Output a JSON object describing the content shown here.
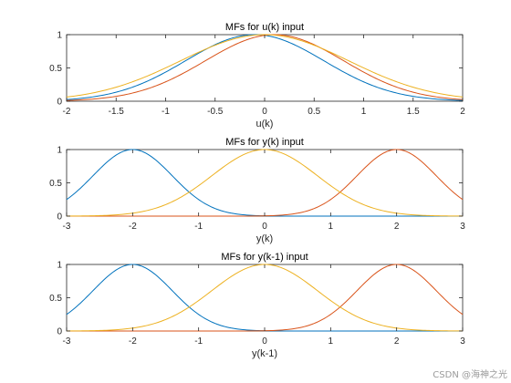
{
  "colors": {
    "series1": "#0072BD",
    "series2": "#D95319",
    "series3": "#EDB120"
  },
  "watermark": "CSDN @海神之光",
  "chart_data": [
    {
      "type": "line",
      "title": "MFs for u(k) input",
      "xlabel": "u(k)",
      "ylabel": "",
      "xlim": [
        -2,
        2
      ],
      "ylim": [
        0,
        1
      ],
      "xticks": [
        "-2",
        "-1.5",
        "-1",
        "-0.5",
        "0",
        "0.5",
        "1",
        "1.5",
        "2"
      ],
      "yticks": [
        "0",
        "0.5",
        "1"
      ],
      "grid": false,
      "legend": "none",
      "series": [
        {
          "function": "gaussmf",
          "sigma": 0.7,
          "center": -0.1
        },
        {
          "function": "gaussmf",
          "sigma": 0.7,
          "center": 0.1
        },
        {
          "function": "gaussmf",
          "sigma": 0.85,
          "center": 0.0
        }
      ]
    },
    {
      "type": "line",
      "title": "MFs for y(k) input",
      "xlabel": "y(k)",
      "ylabel": "",
      "xlim": [
        -3,
        3
      ],
      "ylim": [
        0,
        1
      ],
      "xticks": [
        "-3",
        "-2",
        "-1",
        "0",
        "1",
        "2",
        "3"
      ],
      "yticks": [
        "0",
        "0.5",
        "1"
      ],
      "grid": false,
      "legend": "none",
      "series": [
        {
          "function": "gaussmf",
          "sigma": 0.6,
          "center": -2
        },
        {
          "function": "gaussmf",
          "sigma": 0.6,
          "center": 2
        },
        {
          "function": "gaussmf",
          "sigma": 0.8,
          "center": 0
        }
      ]
    },
    {
      "type": "line",
      "title": "MFs for y(k-1) input",
      "xlabel": "y(k-1)",
      "ylabel": "",
      "xlim": [
        -3,
        3
      ],
      "ylim": [
        0,
        1
      ],
      "xticks": [
        "-3",
        "-2",
        "-1",
        "0",
        "1",
        "2",
        "3"
      ],
      "yticks": [
        "0",
        "0.5",
        "1"
      ],
      "grid": false,
      "legend": "none",
      "series": [
        {
          "function": "gaussmf",
          "sigma": 0.6,
          "center": -2
        },
        {
          "function": "gaussmf",
          "sigma": 0.6,
          "center": 2
        },
        {
          "function": "gaussmf",
          "sigma": 0.8,
          "center": 0
        }
      ]
    }
  ]
}
